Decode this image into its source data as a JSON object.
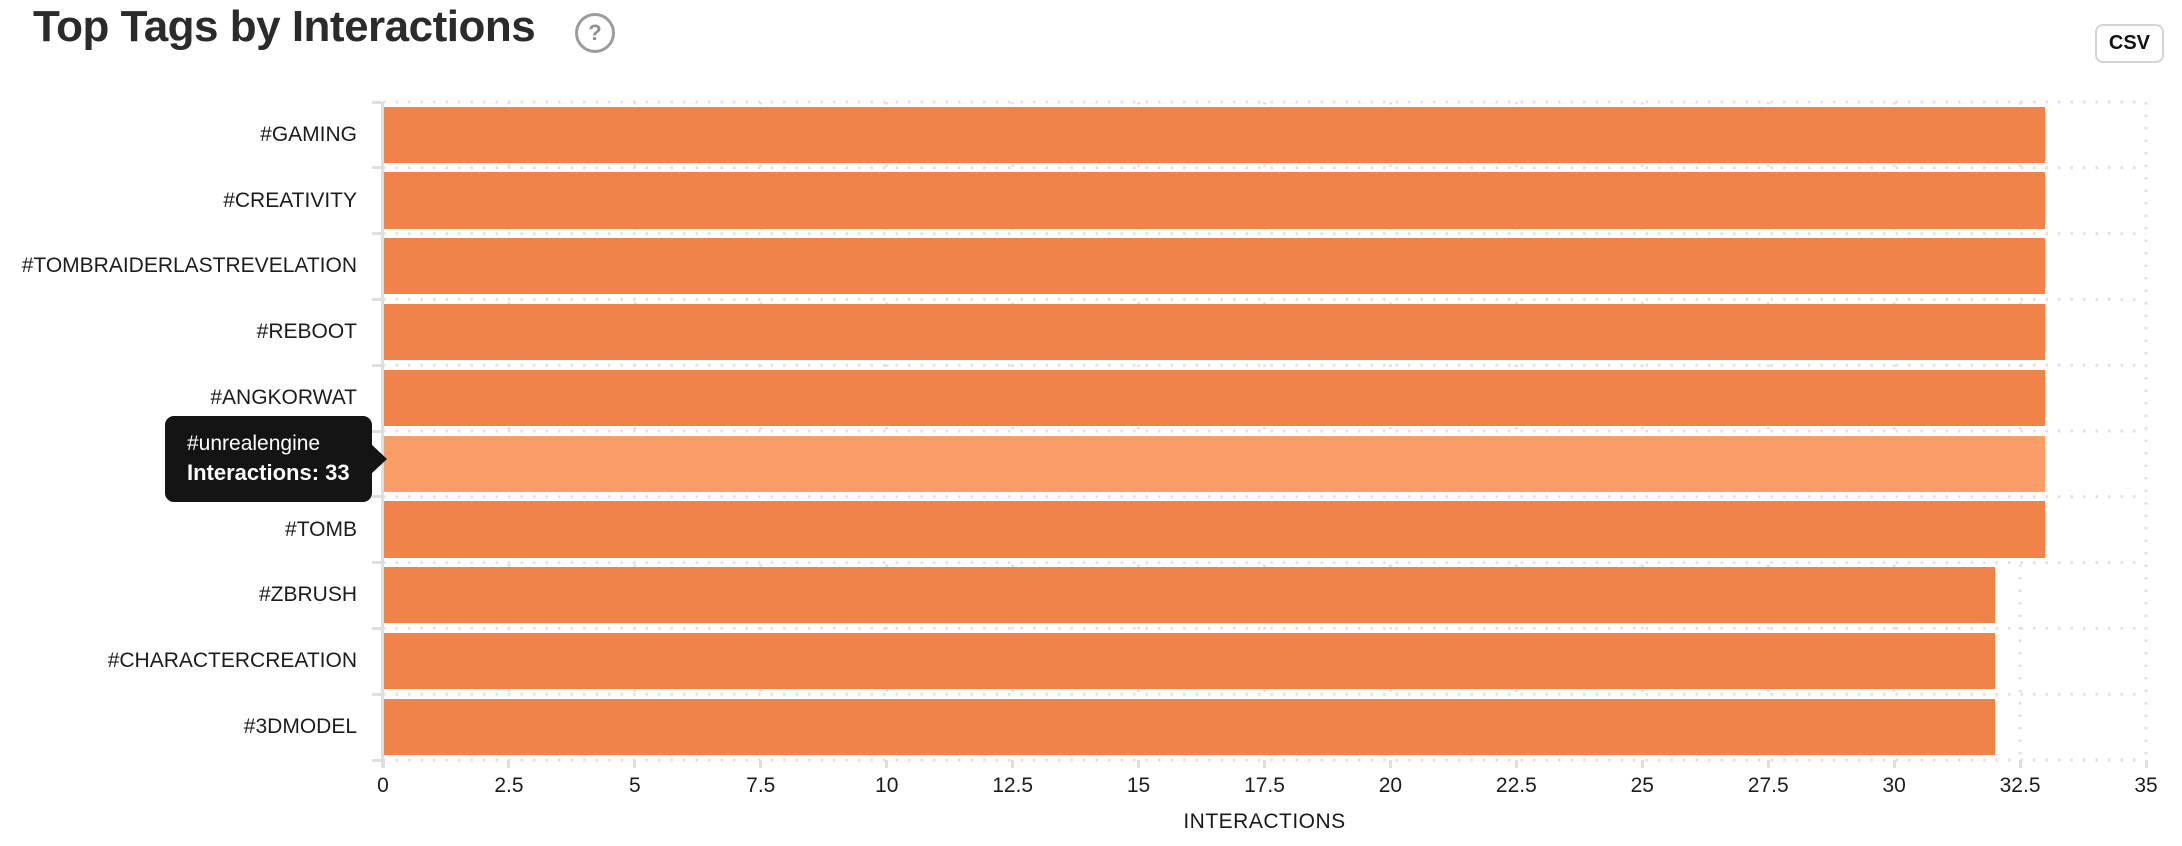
{
  "header": {
    "title": "Top Tags by Interactions",
    "help_icon": "?",
    "csv_button_label": "CSV"
  },
  "tooltip": {
    "title": "#unrealengine",
    "body": "Interactions: 33"
  },
  "chart_data": {
    "type": "bar",
    "orientation": "horizontal",
    "title": "Top Tags by Interactions",
    "categories": [
      "#GAMING",
      "#CREATIVITY",
      "#TOMBRAIDERLASTREVELATION",
      "#REBOOT",
      "#ANGKORWAT",
      "#UNREALENGINE",
      "#TOMB",
      "#ZBRUSH",
      "#CHARACTERCREATION",
      "#3DMODEL"
    ],
    "values": [
      33,
      33,
      33,
      33,
      33,
      33,
      33,
      32,
      32,
      32
    ],
    "highlighted_index": 5,
    "highlighted_value": 33,
    "xlabel": "INTERACTIONS",
    "ylabel": "",
    "xlim": [
      0,
      35
    ],
    "x_ticks": [
      "0",
      "2.5",
      "5",
      "7.5",
      "10",
      "12.5",
      "15",
      "17.5",
      "20",
      "22.5",
      "25",
      "27.5",
      "30",
      "32.5",
      "35"
    ],
    "grid": "dotted",
    "legend": "none",
    "colors": {
      "bar": "#ef8349",
      "bar_highlight": "#fa9d66",
      "grid": "#e1e1e1",
      "axis_line": "#dedede",
      "axis_text": "#1c1c1c",
      "tooltip_bg": "#141414",
      "tooltip_text": "#ffffff"
    }
  }
}
